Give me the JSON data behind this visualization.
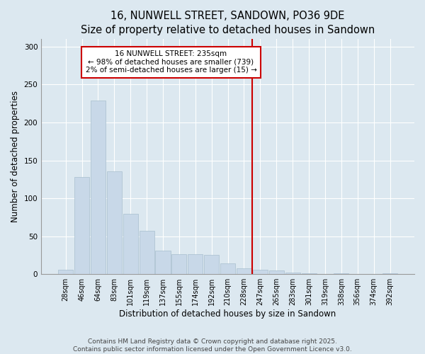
{
  "title": "16, NUNWELL STREET, SANDOWN, PO36 9DE",
  "subtitle": "Size of property relative to detached houses in Sandown",
  "xlabel": "Distribution of detached houses by size in Sandown",
  "ylabel": "Number of detached properties",
  "categories": [
    "28sqm",
    "46sqm",
    "64sqm",
    "83sqm",
    "101sqm",
    "119sqm",
    "137sqm",
    "155sqm",
    "174sqm",
    "192sqm",
    "210sqm",
    "228sqm",
    "247sqm",
    "265sqm",
    "283sqm",
    "301sqm",
    "319sqm",
    "338sqm",
    "356sqm",
    "374sqm",
    "392sqm"
  ],
  "values": [
    6,
    128,
    229,
    136,
    80,
    57,
    31,
    26,
    26,
    25,
    14,
    8,
    6,
    5,
    2,
    1,
    0,
    1,
    0,
    0,
    1
  ],
  "bar_color": "#c8d8e8",
  "bar_edgecolor": "#a8bece",
  "marker_index": 11,
  "marker_line_color": "#cc0000",
  "annotation_line1": "16 NUNWELL STREET: 235sqm",
  "annotation_line2": "← 98% of detached houses are smaller (739)",
  "annotation_line3": "2% of semi-detached houses are larger (15) →",
  "annotation_box_facecolor": "#ffffff",
  "annotation_box_edgecolor": "#cc0000",
  "ylim": [
    0,
    310
  ],
  "yticks": [
    0,
    50,
    100,
    150,
    200,
    250,
    300
  ],
  "footnote1": "Contains HM Land Registry data © Crown copyright and database right 2025.",
  "footnote2": "Contains public sector information licensed under the Open Government Licence v3.0.",
  "bg_color": "#dce8f0",
  "plot_bg_color": "#dce8f0",
  "title_fontsize": 10.5,
  "tick_fontsize": 7,
  "ylabel_fontsize": 8.5,
  "xlabel_fontsize": 8.5,
  "annotation_fontsize": 7.5,
  "footnote_fontsize": 6.5
}
